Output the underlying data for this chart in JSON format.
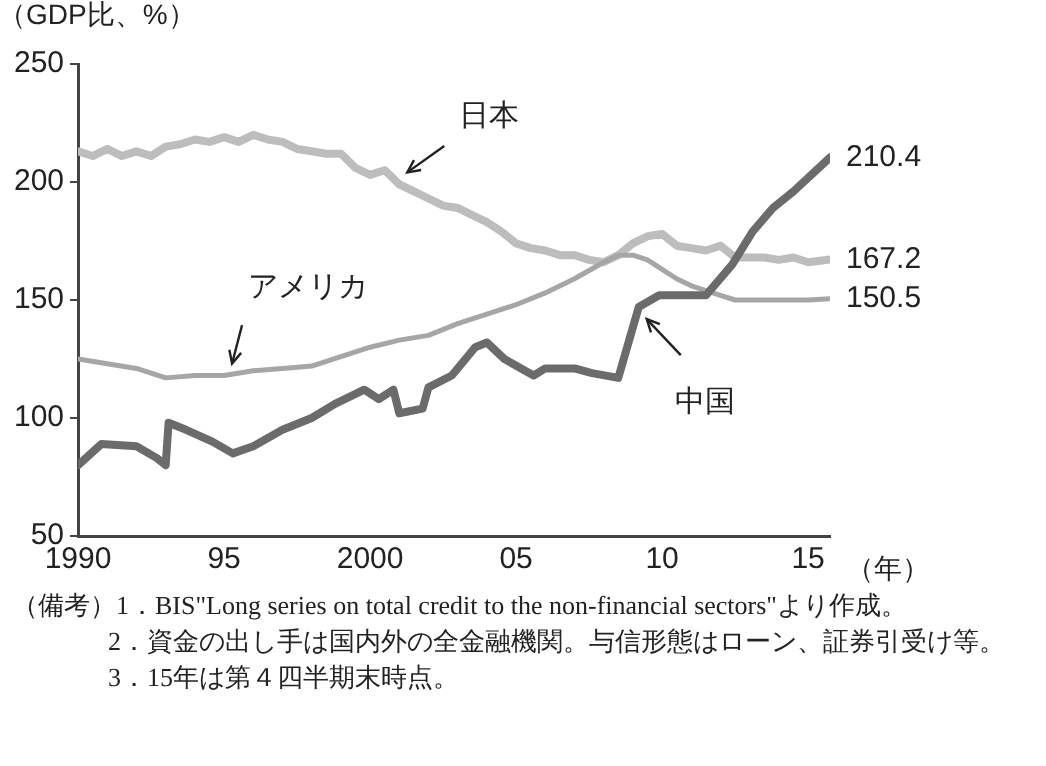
{
  "chart_data": {
    "type": "line",
    "ylabel": "（GDP比、%）",
    "xlabel": "（年）",
    "xlim": [
      1990,
      2015.75
    ],
    "xticks": [
      {
        "value": 1990,
        "label": "1990"
      },
      {
        "value": 1995,
        "label": "95"
      },
      {
        "value": 2000,
        "label": "2000"
      },
      {
        "value": 2005,
        "label": "05"
      },
      {
        "value": 2010,
        "label": "10"
      },
      {
        "value": 2015,
        "label": "15"
      }
    ],
    "ylim": [
      50,
      250
    ],
    "yticks": [
      50,
      100,
      150,
      200,
      250
    ],
    "grid": false,
    "legend": false,
    "marker": "none",
    "line_style": "solid",
    "series": [
      {
        "name": "日本",
        "color": "#bdbdbd",
        "x": [
          1990,
          1990.5,
          1991,
          1991.5,
          1992,
          1992.5,
          1993,
          1993.5,
          1994,
          1994.5,
          1995,
          1995.5,
          1996,
          1996.5,
          1997,
          1997.5,
          1998,
          1998.5,
          1999,
          1999.5,
          2000,
          2000.5,
          2001,
          2001.5,
          2002,
          2002.5,
          2003,
          2003.5,
          2004,
          2004.5,
          2005,
          2005.5,
          2006,
          2006.5,
          2007,
          2007.5,
          2008,
          2008.5,
          2009,
          2009.5,
          2010,
          2010.5,
          2011,
          2011.5,
          2012,
          2012.5,
          2013,
          2013.5,
          2014,
          2014.5,
          2015,
          2015.75
        ],
        "values": [
          213,
          211,
          214,
          211,
          213,
          211,
          215,
          216,
          218,
          217,
          219,
          217,
          220,
          218,
          217,
          214,
          213,
          212,
          212,
          206,
          203,
          205,
          199,
          196,
          193,
          190,
          189,
          186,
          183,
          179,
          174,
          172,
          171,
          169,
          169,
          167,
          166,
          169,
          174,
          177,
          178,
          173,
          172,
          171,
          173,
          168,
          168,
          168,
          167,
          168,
          166,
          167.2
        ],
        "value_labels": [
          null,
          null,
          null,
          null,
          null,
          null,
          null,
          null,
          null,
          null,
          null,
          null,
          null,
          null,
          null,
          null,
          null,
          null,
          null,
          null,
          null,
          null,
          null,
          null,
          null,
          null,
          null,
          null,
          null,
          null,
          null,
          null,
          null,
          null,
          null,
          null,
          null,
          null,
          null,
          null,
          null,
          null,
          null,
          null,
          null,
          null,
          null,
          null,
          null,
          null,
          null,
          "167.2"
        ]
      },
      {
        "name": "アメリカ",
        "color": "#a6a6a6",
        "x": [
          1990,
          1991,
          1992,
          1993,
          1994,
          1995,
          1996,
          1997,
          1998,
          1999,
          2000,
          2001,
          2002,
          2003,
          2004,
          2005,
          2006,
          2007,
          2008,
          2008.5,
          2009,
          2009.5,
          2010,
          2010.5,
          2011,
          2011.5,
          2012,
          2012.5,
          2013,
          2013.5,
          2014,
          2014.5,
          2015,
          2015.75
        ],
        "values": [
          125,
          123,
          121,
          117,
          118,
          118,
          120,
          121,
          122,
          126,
          130,
          133,
          135,
          140,
          144,
          148,
          153,
          159,
          166,
          169,
          169,
          167,
          163,
          159,
          156,
          154,
          152,
          150,
          150,
          150,
          150,
          150,
          150,
          150.5
        ],
        "value_labels": [
          null,
          null,
          null,
          null,
          null,
          null,
          null,
          null,
          null,
          null,
          null,
          null,
          null,
          null,
          null,
          null,
          null,
          null,
          null,
          null,
          null,
          null,
          null,
          null,
          null,
          null,
          null,
          null,
          null,
          null,
          null,
          null,
          null,
          "150.5"
        ]
      },
      {
        "name": "中国",
        "color": "#6b6b6b",
        "x": [
          1990,
          1990.8,
          1992,
          1992.7,
          1993,
          1993.1,
          1993.7,
          1994.6,
          1995.3,
          1996,
          1997,
          1998,
          1998.8,
          1999.8,
          2000.3,
          2000.8,
          2001,
          2001.8,
          2002,
          2002.8,
          2003.6,
          2004,
          2004.6,
          2005.6,
          2006,
          2007,
          2007.6,
          2008.5,
          2009.2,
          2009.9,
          2011,
          2011.5,
          2012.4,
          2013.1,
          2013.8,
          2014.5,
          2015.75
        ],
        "values": [
          80,
          89,
          88,
          83,
          80,
          98,
          95,
          90,
          85,
          88,
          95,
          100,
          106,
          112,
          108,
          112,
          102,
          104,
          113,
          118,
          130,
          132,
          125,
          118,
          121,
          121,
          119,
          117,
          147,
          152,
          152,
          152,
          165,
          179,
          189,
          196,
          210.4
        ],
        "value_labels": [
          null,
          null,
          null,
          null,
          null,
          null,
          null,
          null,
          null,
          null,
          null,
          null,
          null,
          null,
          null,
          null,
          null,
          null,
          null,
          null,
          null,
          null,
          null,
          null,
          null,
          null,
          null,
          null,
          null,
          null,
          null,
          null,
          null,
          null,
          null,
          null,
          "210.4"
        ]
      }
    ],
    "annotations": [
      "（備考）1．BIS\"Long series on total credit to the non-financial sectors\"より作成。",
      "2．資金の出し手は国内外の全金融機関。与信形態はローン、証券引受け等。",
      "3．15年は第４四半期末時点。"
    ]
  }
}
